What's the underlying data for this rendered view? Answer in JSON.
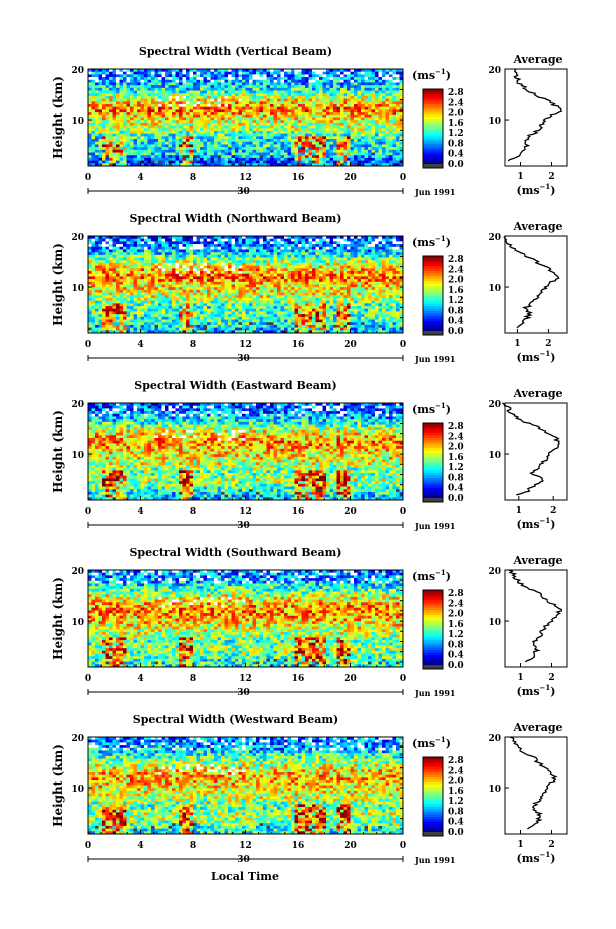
{
  "figure": {
    "x_axis_label": "Local Time",
    "date_label": "Jun 1991",
    "day_label": "30",
    "x_ticks": [
      "0",
      "4",
      "8",
      "12",
      "16",
      "20",
      "0"
    ],
    "y_label": "Height (km)",
    "y_ticks": [
      "20",
      "10"
    ],
    "colorbar_unit": "(ms",
    "colorbar_unit_sup": "−1",
    "colorbar_unit_close": ")",
    "colorbar_ticks": [
      "2.8",
      "2.4",
      "2.0",
      "1.6",
      "1.2",
      "0.8",
      "0.4",
      "0.0"
    ],
    "average_title": "Average",
    "average_unit": "(ms",
    "average_unit_sup": "−1",
    "average_unit_close": ")",
    "colors": {
      "scale": [
        "#000080",
        "#0000ff",
        "#0080ff",
        "#00c0ff",
        "#40ffc0",
        "#c0ff40",
        "#ffff00",
        "#ff8000",
        "#ff0000",
        "#c00000"
      ],
      "below_range": "#404040"
    }
  },
  "chart_data": [
    {
      "type": "heatmap",
      "title": "Spectral Width (Vertical Beam)",
      "x": "Local Time",
      "xlim": [
        0,
        24
      ],
      "y": "Height (km)",
      "ylim": [
        1,
        20
      ],
      "zlim": [
        0.0,
        3.0
      ],
      "average_profile": {
        "heights": [
          2,
          3,
          4,
          5,
          6,
          7,
          8,
          9,
          10,
          11,
          12,
          13,
          14,
          15,
          16,
          17,
          18,
          19,
          20
        ],
        "values": [
          0.6,
          1.0,
          1.1,
          1.2,
          1.2,
          1.3,
          1.6,
          1.7,
          1.8,
          2.0,
          2.3,
          2.1,
          1.8,
          1.5,
          1.2,
          1.0,
          0.9,
          0.8,
          0.8
        ],
        "xticks": [
          "1",
          "2"
        ],
        "xlim": [
          0.5,
          2.5
        ]
      }
    },
    {
      "type": "heatmap",
      "title": "Spectral Width (Northward Beam)",
      "x": "Local Time",
      "xlim": [
        0,
        24
      ],
      "y": "Height (km)",
      "ylim": [
        1,
        20
      ],
      "zlim": [
        0.0,
        3.0
      ],
      "average_profile": {
        "heights": [
          2,
          3,
          4,
          5,
          6,
          7,
          8,
          9,
          10,
          11,
          12,
          13,
          14,
          15,
          16,
          17,
          18,
          19,
          20
        ],
        "values": [
          1.0,
          1.2,
          1.3,
          1.4,
          1.3,
          1.5,
          1.7,
          1.8,
          1.9,
          2.1,
          2.3,
          2.1,
          1.9,
          1.6,
          1.3,
          1.0,
          0.8,
          0.7,
          0.6
        ],
        "xticks": [
          "1",
          "2"
        ],
        "xlim": [
          0.6,
          2.6
        ]
      }
    },
    {
      "type": "heatmap",
      "title": "Spectral Width (Eastward Beam)",
      "x": "Local Time",
      "xlim": [
        0,
        24
      ],
      "y": "Height (km)",
      "ylim": [
        1,
        20
      ],
      "zlim": [
        0.0,
        3.0
      ],
      "average_profile": {
        "heights": [
          2,
          3,
          4,
          5,
          6,
          7,
          8,
          9,
          10,
          11,
          12,
          13,
          14,
          15,
          16,
          17,
          18,
          19,
          20
        ],
        "values": [
          1.0,
          1.3,
          1.5,
          1.7,
          1.4,
          1.5,
          1.7,
          1.8,
          1.9,
          2.0,
          2.2,
          2.1,
          1.9,
          1.6,
          1.3,
          1.0,
          0.8,
          0.7,
          0.6
        ],
        "xticks": [
          "1",
          "2"
        ],
        "xlim": [
          0.6,
          2.4
        ]
      }
    },
    {
      "type": "heatmap",
      "title": "Spectral Width (Southward Beam)",
      "x": "Local Time",
      "xlim": [
        0,
        24
      ],
      "y": "Height (km)",
      "ylim": [
        1,
        20
      ],
      "zlim": [
        0.0,
        3.0
      ],
      "average_profile": {
        "heights": [
          2,
          3,
          4,
          5,
          6,
          7,
          8,
          9,
          10,
          11,
          12,
          13,
          14,
          15,
          16,
          17,
          18,
          19,
          20
        ],
        "values": [
          1.2,
          1.4,
          1.5,
          1.5,
          1.4,
          1.6,
          1.7,
          1.8,
          2.0,
          2.1,
          2.3,
          2.1,
          1.9,
          1.7,
          1.4,
          1.1,
          0.9,
          0.8,
          0.7
        ],
        "xticks": [
          "1",
          "2"
        ],
        "xlim": [
          0.5,
          2.5
        ]
      }
    },
    {
      "type": "heatmap",
      "title": "Spectral Width (Westward Beam)",
      "x": "Local Time",
      "xlim": [
        0,
        24
      ],
      "y": "Height (km)",
      "ylim": [
        1,
        20
      ],
      "zlim": [
        0.0,
        3.0
      ],
      "average_profile": {
        "heights": [
          2,
          3,
          4,
          5,
          6,
          7,
          8,
          9,
          10,
          11,
          12,
          13,
          14,
          15,
          16,
          17,
          18,
          19,
          20
        ],
        "values": [
          1.2,
          1.5,
          1.6,
          1.6,
          1.4,
          1.5,
          1.7,
          1.8,
          1.9,
          2.0,
          2.1,
          2.0,
          1.8,
          1.6,
          1.4,
          1.1,
          0.9,
          0.8,
          0.7
        ],
        "xticks": [
          "1",
          "2"
        ],
        "xlim": [
          0.5,
          2.5
        ]
      }
    }
  ]
}
